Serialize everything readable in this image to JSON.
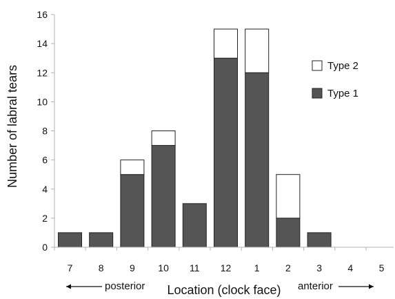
{
  "chart_data": {
    "type": "bar",
    "stacked": true,
    "categories": [
      "7",
      "8",
      "9",
      "10",
      "11",
      "12",
      "1",
      "2",
      "3",
      "4",
      "5"
    ],
    "series": [
      {
        "name": "Type 1",
        "values": [
          1,
          1,
          5,
          7,
          3,
          13,
          12,
          2,
          1,
          0,
          0
        ],
        "color": "#555555"
      },
      {
        "name": "Type 2",
        "values": [
          0,
          0,
          1,
          1,
          0,
          2,
          3,
          3,
          0,
          0,
          0
        ],
        "color": "#ffffff"
      }
    ],
    "xlabel": "Location (clock face)",
    "ylabel": "Number of labral tears",
    "ylim": [
      0,
      16
    ],
    "yticks": [
      0,
      2,
      4,
      6,
      8,
      10,
      12,
      14,
      16
    ],
    "grid": false,
    "legend_position": "right",
    "legend": [
      {
        "label": "Type 2",
        "color": "#ffffff"
      },
      {
        "label": "Type 1",
        "color": "#555555"
      }
    ],
    "annotations": {
      "left": "posterior",
      "right": "anterior"
    }
  }
}
